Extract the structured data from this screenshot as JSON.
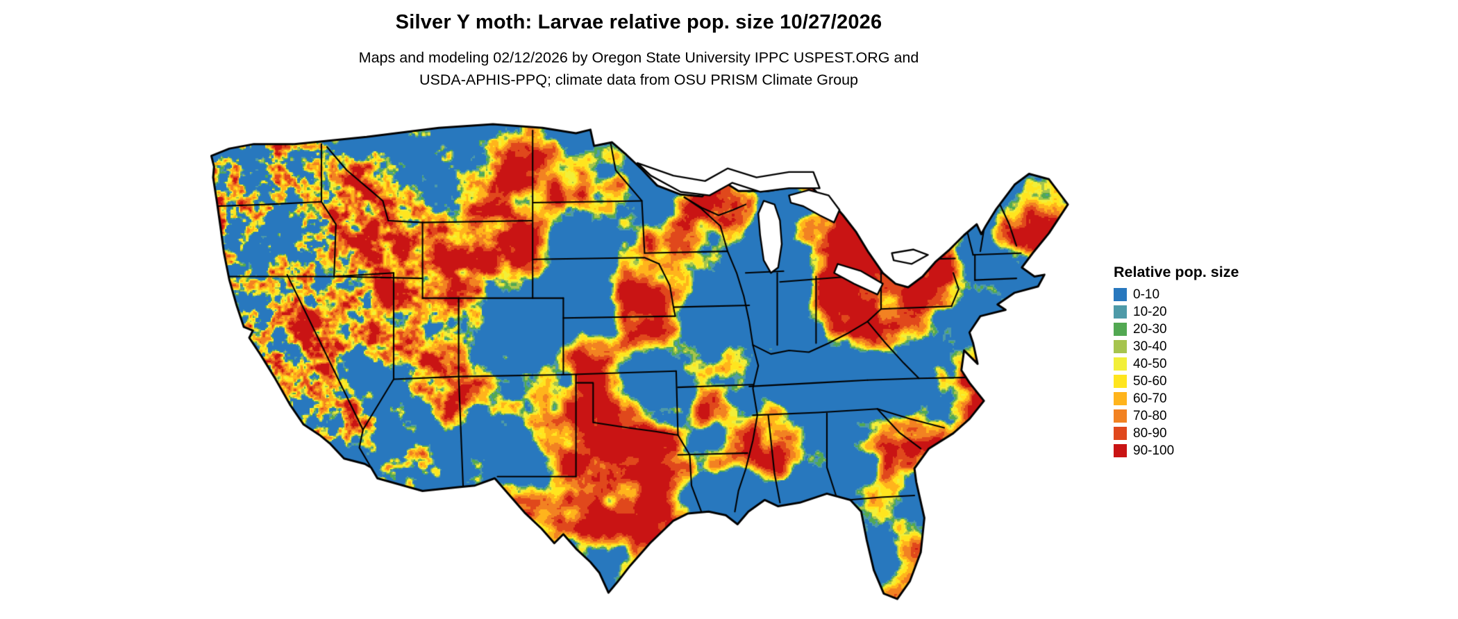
{
  "header": {
    "title": "Silver Y moth: Larvae relative pop. size 10/27/2026",
    "subtitle_line1": "Maps and modeling 02/12/2026 by Oregon State University IPPC USPEST.ORG and",
    "subtitle_line2": "USDA-APHIS-PPQ; climate data from OSU PRISM Climate Group"
  },
  "legend": {
    "title": "Relative pop. size",
    "items": [
      {
        "label": "0-10",
        "color": "#2878be"
      },
      {
        "label": "10-20",
        "color": "#4e9aa8"
      },
      {
        "label": "20-30",
        "color": "#52a852"
      },
      {
        "label": "30-40",
        "color": "#a6c44e"
      },
      {
        "label": "40-50",
        "color": "#f2ef39"
      },
      {
        "label": "50-60",
        "color": "#ffe51f"
      },
      {
        "label": "60-70",
        "color": "#ffb41c"
      },
      {
        "label": "70-80",
        "color": "#f28222"
      },
      {
        "label": "80-90",
        "color": "#e0481c"
      },
      {
        "label": "90-100",
        "color": "#c91414"
      }
    ]
  },
  "map": {
    "region": "Contiguous United States",
    "background": "#ffffff",
    "boundary_color": "#000000"
  }
}
